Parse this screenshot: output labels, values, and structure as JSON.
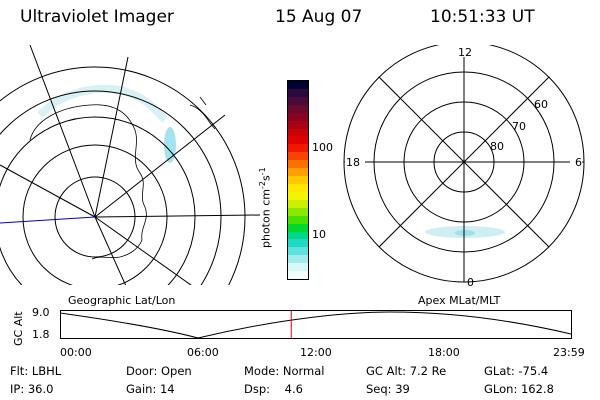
{
  "header": {
    "instrument": "Ultraviolet Imager",
    "date": "15 Aug 07",
    "time": "10:51:33 UT"
  },
  "left_map": {
    "caption": "Geographic Lat/Lon"
  },
  "right_map": {
    "caption": "Apex MLat/MLT",
    "mlt_labels": {
      "top": "12",
      "left": "18",
      "right": "6",
      "bottom": "0"
    },
    "lat_labels": [
      "60",
      "70",
      "80"
    ]
  },
  "colorbar": {
    "unit_label": "photon cm",
    "unit_exp1": "-2",
    "unit_mid": "s",
    "unit_exp2": "-1",
    "tick_100": "100",
    "tick_10": "10",
    "colors": [
      "#000033",
      "#2a0a3a",
      "#4a0a3a",
      "#6a0a2a",
      "#8a0022",
      "#aa0011",
      "#c80008",
      "#e00000",
      "#f01800",
      "#f84400",
      "#fc7000",
      "#ffa000",
      "#ffc800",
      "#ffe800",
      "#f4f400",
      "#c8f000",
      "#8ce800",
      "#48e000",
      "#00d830",
      "#00d88c",
      "#20d8c4",
      "#60e0dc",
      "#a0ecec",
      "#d8f8f8",
      "#f4fcfc"
    ]
  },
  "altitude_plot": {
    "ylabel": "GC Alt",
    "ymax_label": "9.0",
    "ymin_label": "1.8",
    "time_ticks": [
      "00:00",
      "06:00",
      "12:00",
      "18:00",
      "23:59"
    ],
    "current_time_fraction": 0.4525
  },
  "status": {
    "flt_label": "Flt:",
    "flt_value": "LBHL",
    "ip_label": "IP:",
    "ip_value": "36.0",
    "door_label": "Door:",
    "door_value": "Open",
    "gain_label": "Gain:",
    "gain_value": "14",
    "mode_label": "Mode:",
    "mode_value": "Normal",
    "dsp_label": "Dsp:",
    "dsp_value": "4.6",
    "gcalt_label": "GC Alt:",
    "gcalt_value": "7.2 Re",
    "seq_label": "Seq:",
    "seq_value": "39",
    "glat_label": "GLat:",
    "glat_value": "-75.4",
    "glon_label": "GLon:",
    "glon_value": "162.8"
  },
  "colors": {
    "aurora": "#9be0ec",
    "marker": "#e00000",
    "orbit_line": "#0000cc"
  }
}
